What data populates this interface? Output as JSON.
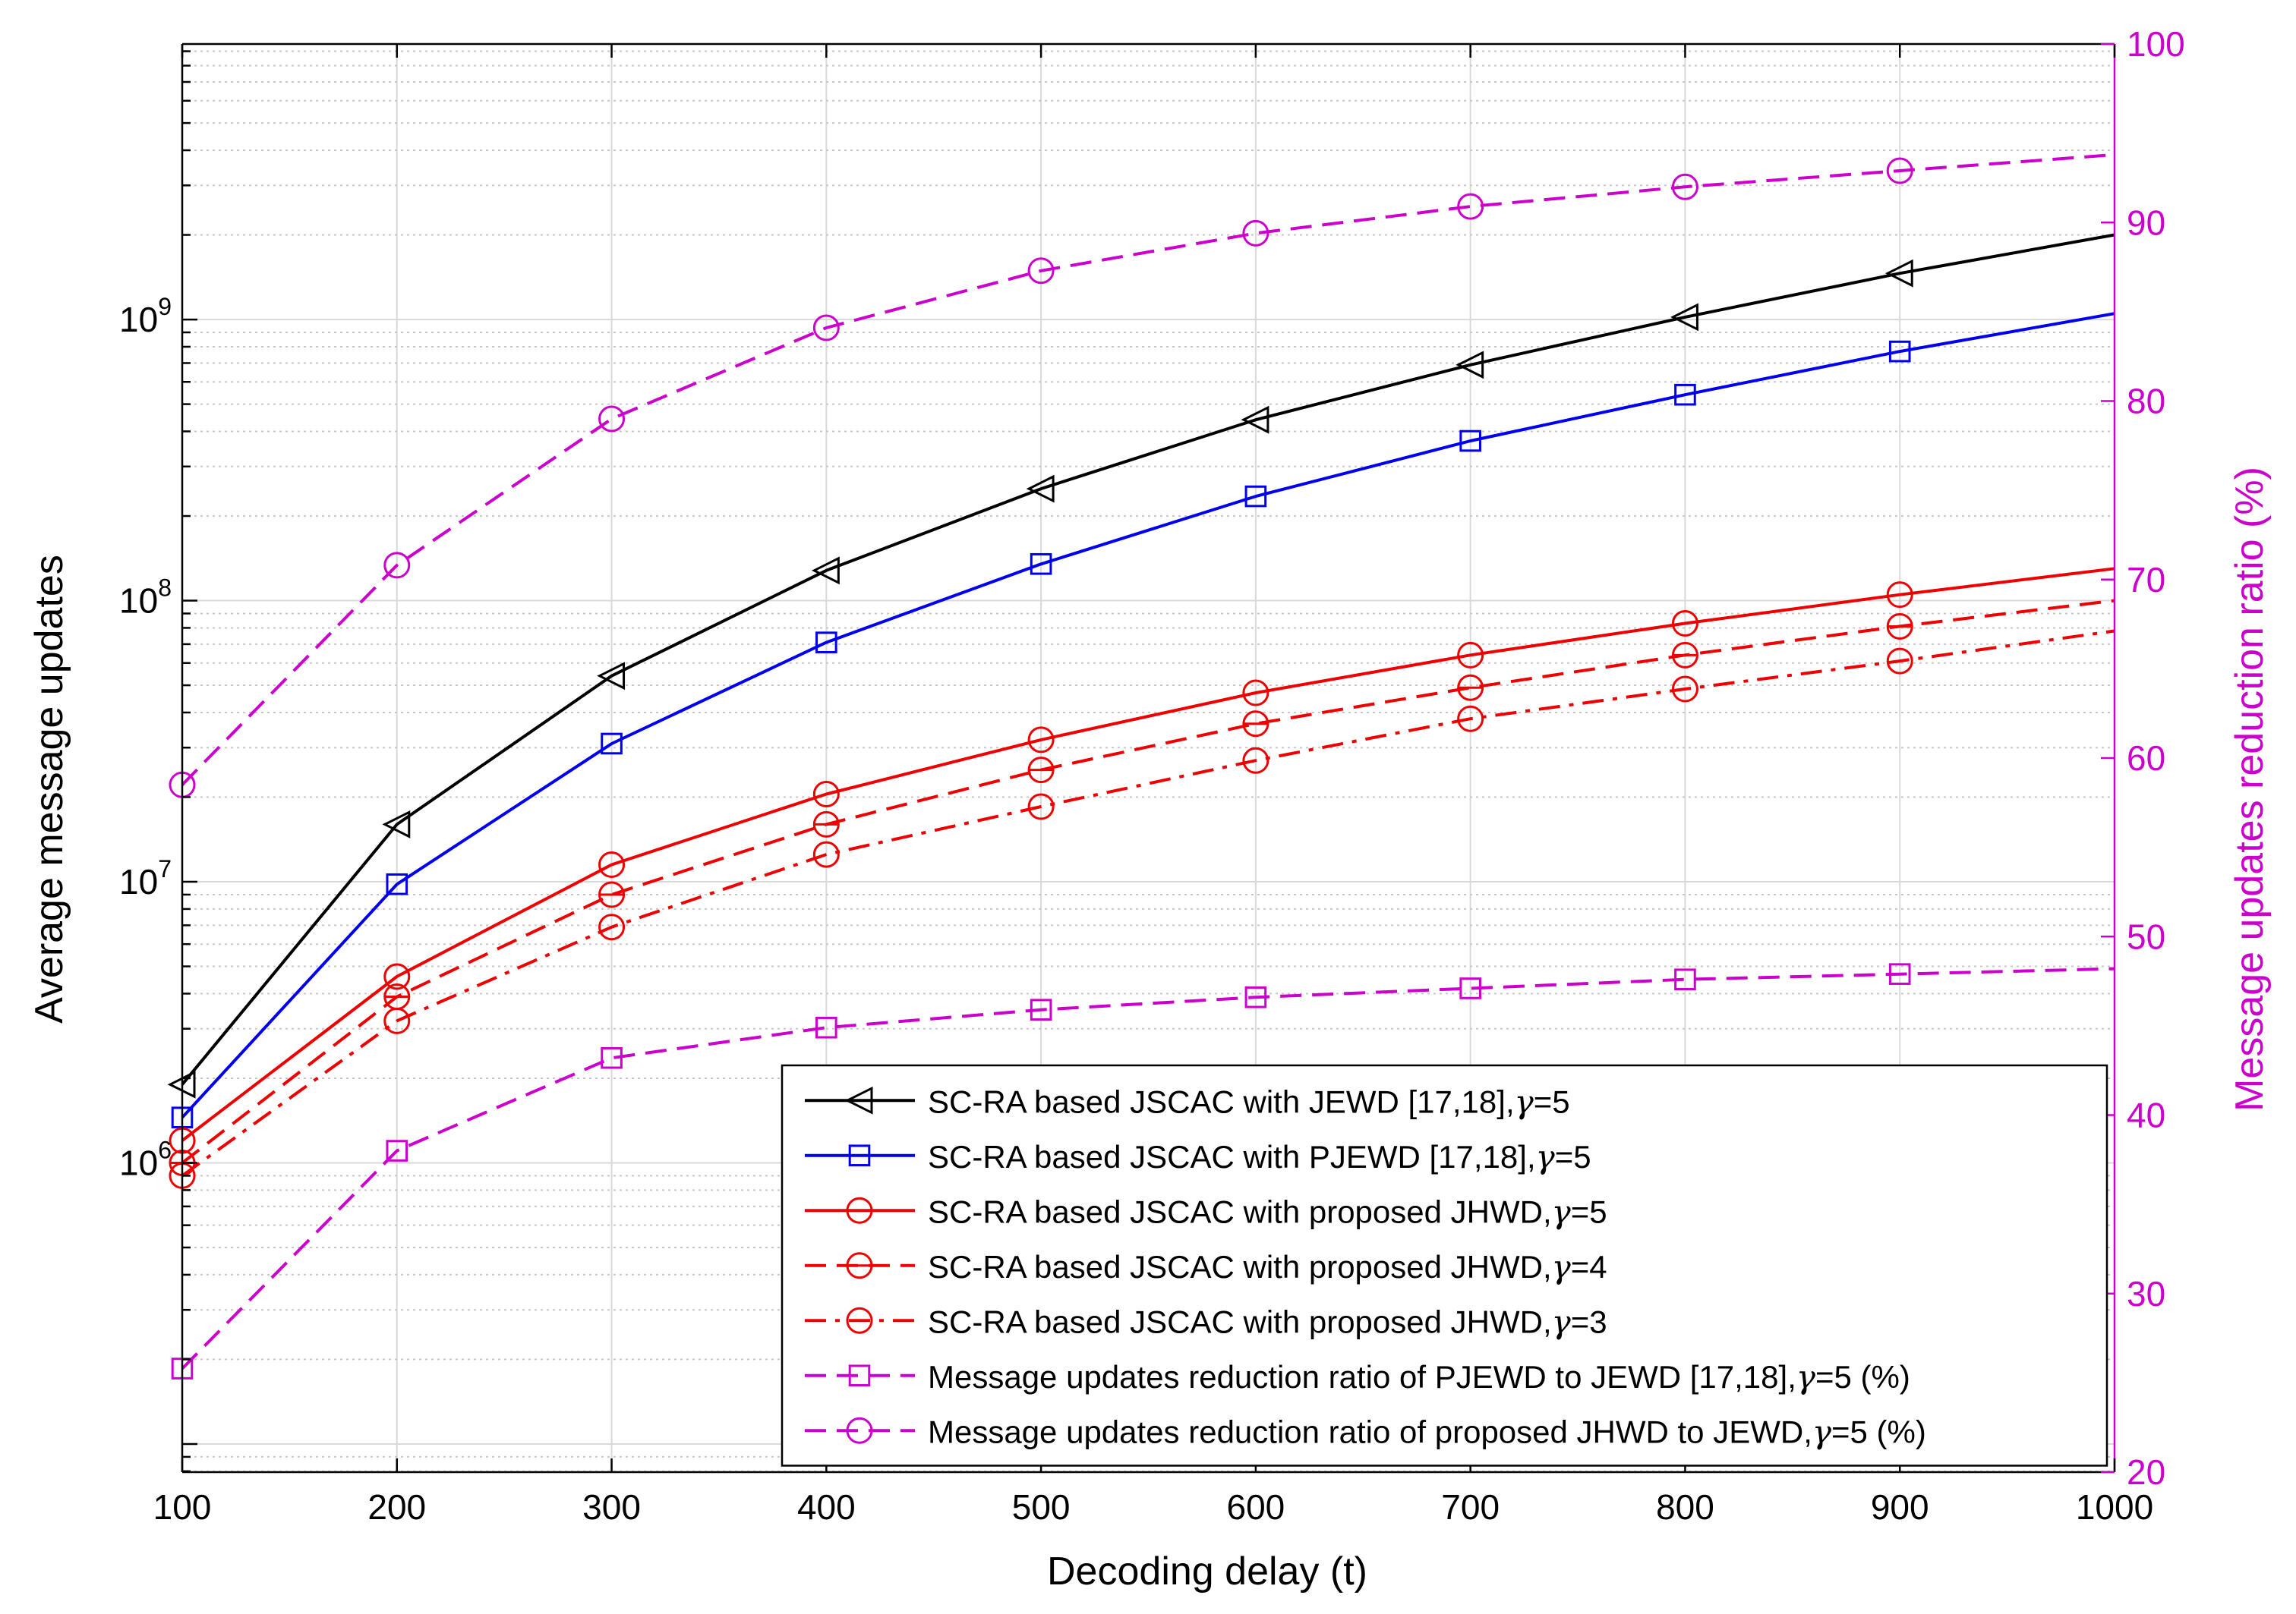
{
  "chart_data": {
    "type": "line",
    "xlabel": "Decoding delay (t)",
    "ylabel": "Average message updates",
    "y2label": "Message updates reduction ratio (%)",
    "x": [
      100,
      200,
      300,
      400,
      500,
      600,
      700,
      800,
      900,
      1000
    ],
    "xlim": [
      100,
      1000
    ],
    "ylim_log10": [
      4.9,
      9.98
    ],
    "y2lim": [
      20,
      100
    ],
    "x_ticks": [
      "100",
      "200",
      "300",
      "400",
      "500",
      "600",
      "700",
      "800",
      "900",
      "1000"
    ],
    "y_ticks": [
      {
        "base": "10",
        "exp": "6",
        "value": 1000000
      },
      {
        "base": "10",
        "exp": "7",
        "value": 10000000
      },
      {
        "base": "10",
        "exp": "8",
        "value": 100000000
      },
      {
        "base": "10",
        "exp": "9",
        "value": 1000000000
      }
    ],
    "y2_ticks": [
      "20",
      "30",
      "40",
      "50",
      "60",
      "70",
      "80",
      "90",
      "100"
    ],
    "grid": true,
    "legend_position": "bottom-right",
    "series": [
      {
        "name": "SC-RA based JSCAC with JEWD [17,18],",
        "gamma": "=5",
        "tail": "",
        "axis": "left",
        "color": "#000000",
        "dash": "solid",
        "marker": "triangle-left",
        "marker_x": [
          100,
          200,
          300,
          400,
          500,
          600,
          700,
          800,
          900
        ],
        "values": [
          1900000,
          16000000,
          54000000,
          128000000,
          250000000,
          440000000,
          690000000,
          1020000000,
          1460000000,
          2000000000
        ]
      },
      {
        "name": "SC-RA based JSCAC with PJEWD [17,18],",
        "gamma": "=5",
        "tail": "",
        "axis": "left",
        "color": "#0000ee",
        "dash": "solid",
        "marker": "square",
        "marker_x": [
          100,
          200,
          300,
          400,
          500,
          600,
          700,
          800,
          900
        ],
        "values": [
          1450000,
          9800000,
          31000000,
          71000000,
          135000000,
          235000000,
          370000000,
          540000000,
          770000000,
          1050000000
        ]
      },
      {
        "name": "SC-RA based JSCAC with proposed JHWD,",
        "gamma": "=5",
        "tail": "",
        "axis": "left",
        "color": "#ee0000",
        "dash": "solid",
        "marker": "circle",
        "marker_x": [
          100,
          200,
          300,
          400,
          500,
          600,
          700,
          800,
          900
        ],
        "values": [
          1200000,
          4600000,
          11500000,
          20500000,
          32000000,
          47000000,
          64000000,
          83000000,
          105000000,
          130000000
        ]
      },
      {
        "name": "SC-RA based JSCAC with proposed JHWD,",
        "gamma": "=4",
        "tail": "",
        "axis": "left",
        "color": "#ee0000",
        "dash": "dashed",
        "marker": "circle-bar",
        "marker_x": [
          100,
          200,
          300,
          400,
          500,
          600,
          700,
          800,
          900
        ],
        "values": [
          1000000,
          3900000,
          9000000,
          16000000,
          25000000,
          36500000,
          49000000,
          64000000,
          81000000,
          100000000
        ]
      },
      {
        "name": "SC-RA based JSCAC with proposed JHWD,",
        "gamma": "=3",
        "tail": "",
        "axis": "left",
        "color": "#ee0000",
        "dash": "dashdot",
        "marker": "circle",
        "marker_x": [
          100,
          200,
          300,
          400,
          500,
          600,
          700,
          800,
          900
        ],
        "values": [
          900000,
          3200000,
          6900000,
          12500000,
          18500000,
          27000000,
          38000000,
          48500000,
          61000000,
          78000000
        ]
      },
      {
        "name": "Message updates reduction ratio of PJEWD to JEWD [17,18],",
        "gamma": "=5",
        "tail": " (%)",
        "axis": "right",
        "color": "#cc00cc",
        "dash": "dashed",
        "marker": "square",
        "marker_x": [
          100,
          200,
          300,
          400,
          500,
          600,
          700,
          800,
          900
        ],
        "values": [
          25.8,
          38,
          43.2,
          44.9,
          45.9,
          46.6,
          47.1,
          47.6,
          47.9,
          48.2
        ]
      },
      {
        "name": "Message updates reduction ratio of proposed JHWD to JEWD,",
        "gamma": "=5",
        "tail": " (%)",
        "axis": "right",
        "color": "#cc00cc",
        "dash": "dashed",
        "marker": "circle",
        "marker_x": [
          100,
          200,
          300,
          400,
          500,
          600,
          700,
          800,
          900
        ],
        "values": [
          58.5,
          70.8,
          79,
          84.1,
          87.3,
          89.4,
          90.9,
          92,
          92.9,
          93.8
        ]
      }
    ]
  }
}
